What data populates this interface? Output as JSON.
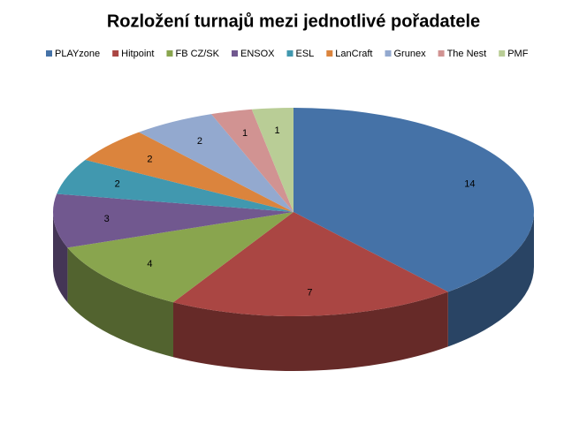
{
  "chart_data": {
    "type": "pie",
    "title": "Rozložení turnajů mezi jednotlivé pořadatele",
    "categories": [
      "PLAYzone",
      "Hitpoint",
      "FB CZ/SK",
      "ENSOX",
      "ESL",
      "LanCraft",
      "Grunex",
      "The Nest",
      "PMF"
    ],
    "values": [
      14,
      7,
      4,
      3,
      2,
      2,
      2,
      1,
      1
    ],
    "colors": [
      "#4572a7",
      "#aa4643",
      "#89a54e",
      "#71588f",
      "#4198af",
      "#db843d",
      "#93a9cf",
      "#d19392",
      "#b9cd96"
    ],
    "legend": "top"
  }
}
